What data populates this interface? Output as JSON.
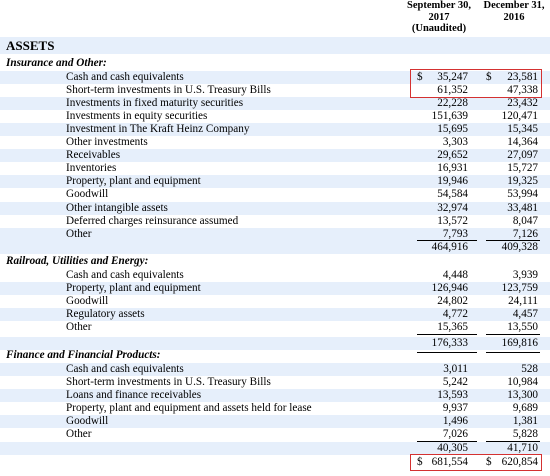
{
  "header": {
    "col1": [
      "September 30,",
      "2017",
      "(Unaudited)"
    ],
    "col2": [
      "December 31,",
      "2016"
    ]
  },
  "assets_title": "ASSETS",
  "insurance": {
    "title": "Insurance and Other:",
    "rows": [
      {
        "label": "Cash and cash equivalents",
        "v1": "35,247",
        "v2": "23,581",
        "cur": "$"
      },
      {
        "label": "Short-term investments in U.S. Treasury Bills",
        "v1": "61,352",
        "v2": "47,338"
      },
      {
        "label": "Investments in fixed maturity securities",
        "v1": "22,228",
        "v2": "23,432"
      },
      {
        "label": "Investments in equity securities",
        "v1": "151,639",
        "v2": "120,471"
      },
      {
        "label": "Investment in The Kraft Heinz Company",
        "v1": "15,695",
        "v2": "15,345"
      },
      {
        "label": "Other investments",
        "v1": "3,303",
        "v2": "14,364"
      },
      {
        "label": "Receivables",
        "v1": "29,652",
        "v2": "27,097"
      },
      {
        "label": "Inventories",
        "v1": "16,931",
        "v2": "15,727"
      },
      {
        "label": "Property, plant and equipment",
        "v1": "19,946",
        "v2": "19,325"
      },
      {
        "label": "Goodwill",
        "v1": "54,584",
        "v2": "53,994"
      },
      {
        "label": "Other intangible assets",
        "v1": "32,974",
        "v2": "33,481"
      },
      {
        "label": "Deferred charges reinsurance assumed",
        "v1": "13,572",
        "v2": "8,047"
      },
      {
        "label": "Other",
        "v1": "7,793",
        "v2": "7,126"
      }
    ],
    "total": {
      "v1": "464,916",
      "v2": "409,328"
    }
  },
  "railroad": {
    "title": "Railroad, Utilities and Energy:",
    "rows": [
      {
        "label": "Cash and cash equivalents",
        "v1": "4,448",
        "v2": "3,939"
      },
      {
        "label": "Property, plant and equipment",
        "v1": "126,946",
        "v2": "123,759"
      },
      {
        "label": "Goodwill",
        "v1": "24,802",
        "v2": "24,111"
      },
      {
        "label": "Regulatory assets",
        "v1": "4,772",
        "v2": "4,457"
      },
      {
        "label": "Other",
        "v1": "15,365",
        "v2": "13,550"
      }
    ],
    "total": {
      "v1": "176,333",
      "v2": "169,816"
    }
  },
  "finance": {
    "title": "Finance and Financial Products:",
    "rows": [
      {
        "label": "Cash and cash equivalents",
        "v1": "3,011",
        "v2": "528"
      },
      {
        "label": "Short-term investments in U.S. Treasury Bills",
        "v1": "5,242",
        "v2": "10,984"
      },
      {
        "label": "Loans and finance receivables",
        "v1": "13,593",
        "v2": "13,300"
      },
      {
        "label": "Property, plant and equipment and assets held for lease",
        "v1": "9,937",
        "v2": "9,689"
      },
      {
        "label": "Goodwill",
        "v1": "1,496",
        "v2": "1,381"
      },
      {
        "label": "Other",
        "v1": "7,026",
        "v2": "5,828"
      }
    ],
    "subtotal": {
      "v1": "40,305",
      "v2": "41,710"
    }
  },
  "grand_total": {
    "v1": "681,554",
    "v2": "620,854",
    "cur": "$"
  },
  "colors": {
    "shade": "#e6effb",
    "highlight_box": "#d43131"
  }
}
